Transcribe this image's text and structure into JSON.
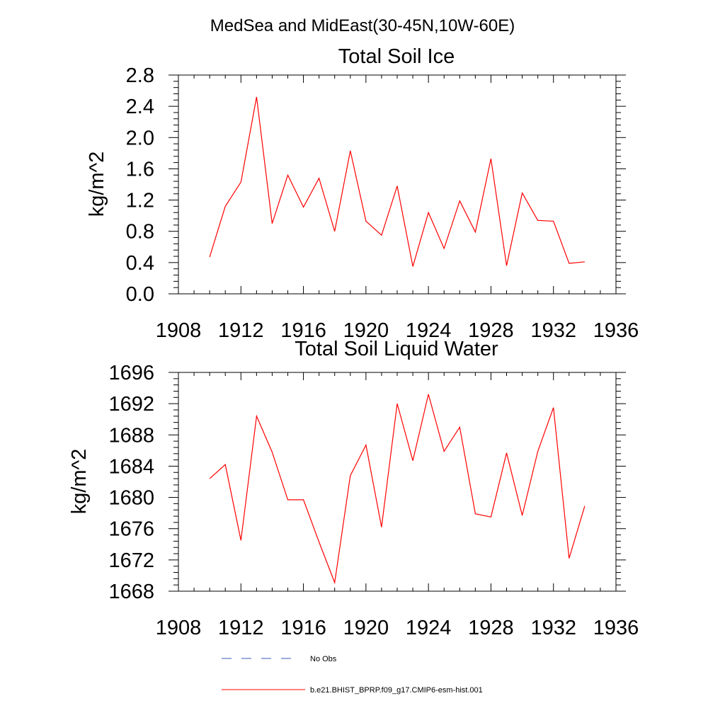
{
  "figure_title": "MedSea and MidEast(30-45N,10W-60E)",
  "chart_data": [
    {
      "type": "line",
      "title": "Total Soil Ice",
      "xlabel": "",
      "ylabel": "kg/m^2",
      "xlim": [
        1908,
        1936
      ],
      "ylim": [
        0.0,
        2.8
      ],
      "xticks": [
        "1908",
        "1912",
        "1916",
        "1920",
        "1924",
        "1928",
        "1932",
        "1936"
      ],
      "yticks": [
        "0.0",
        "0.4",
        "0.8",
        "1.2",
        "1.6",
        "2.0",
        "2.4",
        "2.8"
      ],
      "grid": false,
      "series": [
        {
          "name": "b.e21.BHIST_BPRP.f09_g17.CMIP6-esm-hist.001",
          "color": "#ff0000",
          "x": [
            1910,
            1911,
            1912,
            1913,
            1914,
            1915,
            1916,
            1917,
            1918,
            1919,
            1920,
            1921,
            1922,
            1923,
            1924,
            1925,
            1926,
            1927,
            1928,
            1929,
            1930,
            1931,
            1932,
            1933,
            1934
          ],
          "values": [
            0.47,
            1.12,
            1.43,
            2.52,
            0.9,
            1.52,
            1.11,
            1.48,
            0.8,
            1.83,
            0.93,
            0.75,
            1.38,
            0.35,
            1.04,
            0.58,
            1.19,
            0.79,
            1.73,
            0.36,
            1.29,
            0.94,
            0.93,
            0.39,
            0.41
          ]
        }
      ]
    },
    {
      "type": "line",
      "title": "Total Soil Liquid Water",
      "xlabel": "",
      "ylabel": "kg/m^2",
      "xlim": [
        1908,
        1936
      ],
      "ylim": [
        1668,
        1696
      ],
      "xticks": [
        "1908",
        "1912",
        "1916",
        "1920",
        "1924",
        "1928",
        "1932",
        "1936"
      ],
      "yticks": [
        "1668",
        "1672",
        "1676",
        "1680",
        "1684",
        "1688",
        "1692",
        "1696"
      ],
      "grid": false,
      "series": [
        {
          "name": "b.e21.BHIST_BPRP.f09_g17.CMIP6-esm-hist.001",
          "color": "#ff0000",
          "x": [
            1910,
            1911,
            1912,
            1913,
            1914,
            1915,
            1916,
            1917,
            1918,
            1919,
            1920,
            1921,
            1922,
            1923,
            1924,
            1925,
            1926,
            1927,
            1928,
            1929,
            1930,
            1931,
            1932,
            1933,
            1934
          ],
          "values": [
            1682.4,
            1684.2,
            1674.5,
            1690.4,
            1685.8,
            1679.7,
            1679.7,
            1674.3,
            1669.1,
            1682.8,
            1686.7,
            1676.2,
            1692.0,
            1684.7,
            1693.2,
            1685.9,
            1689.0,
            1677.9,
            1677.5,
            1685.7,
            1677.7,
            1685.9,
            1691.5,
            1672.2,
            1678.9
          ]
        }
      ]
    }
  ],
  "legend": {
    "placement": "bottom",
    "entries": [
      {
        "label": "No Obs",
        "color": "#3a5bb8",
        "style": "dashed"
      },
      {
        "label": "b.e21.BHIST_BPRP.f09_g17.CMIP6-esm-hist.001",
        "color": "#ff0000",
        "style": "solid"
      }
    ]
  }
}
